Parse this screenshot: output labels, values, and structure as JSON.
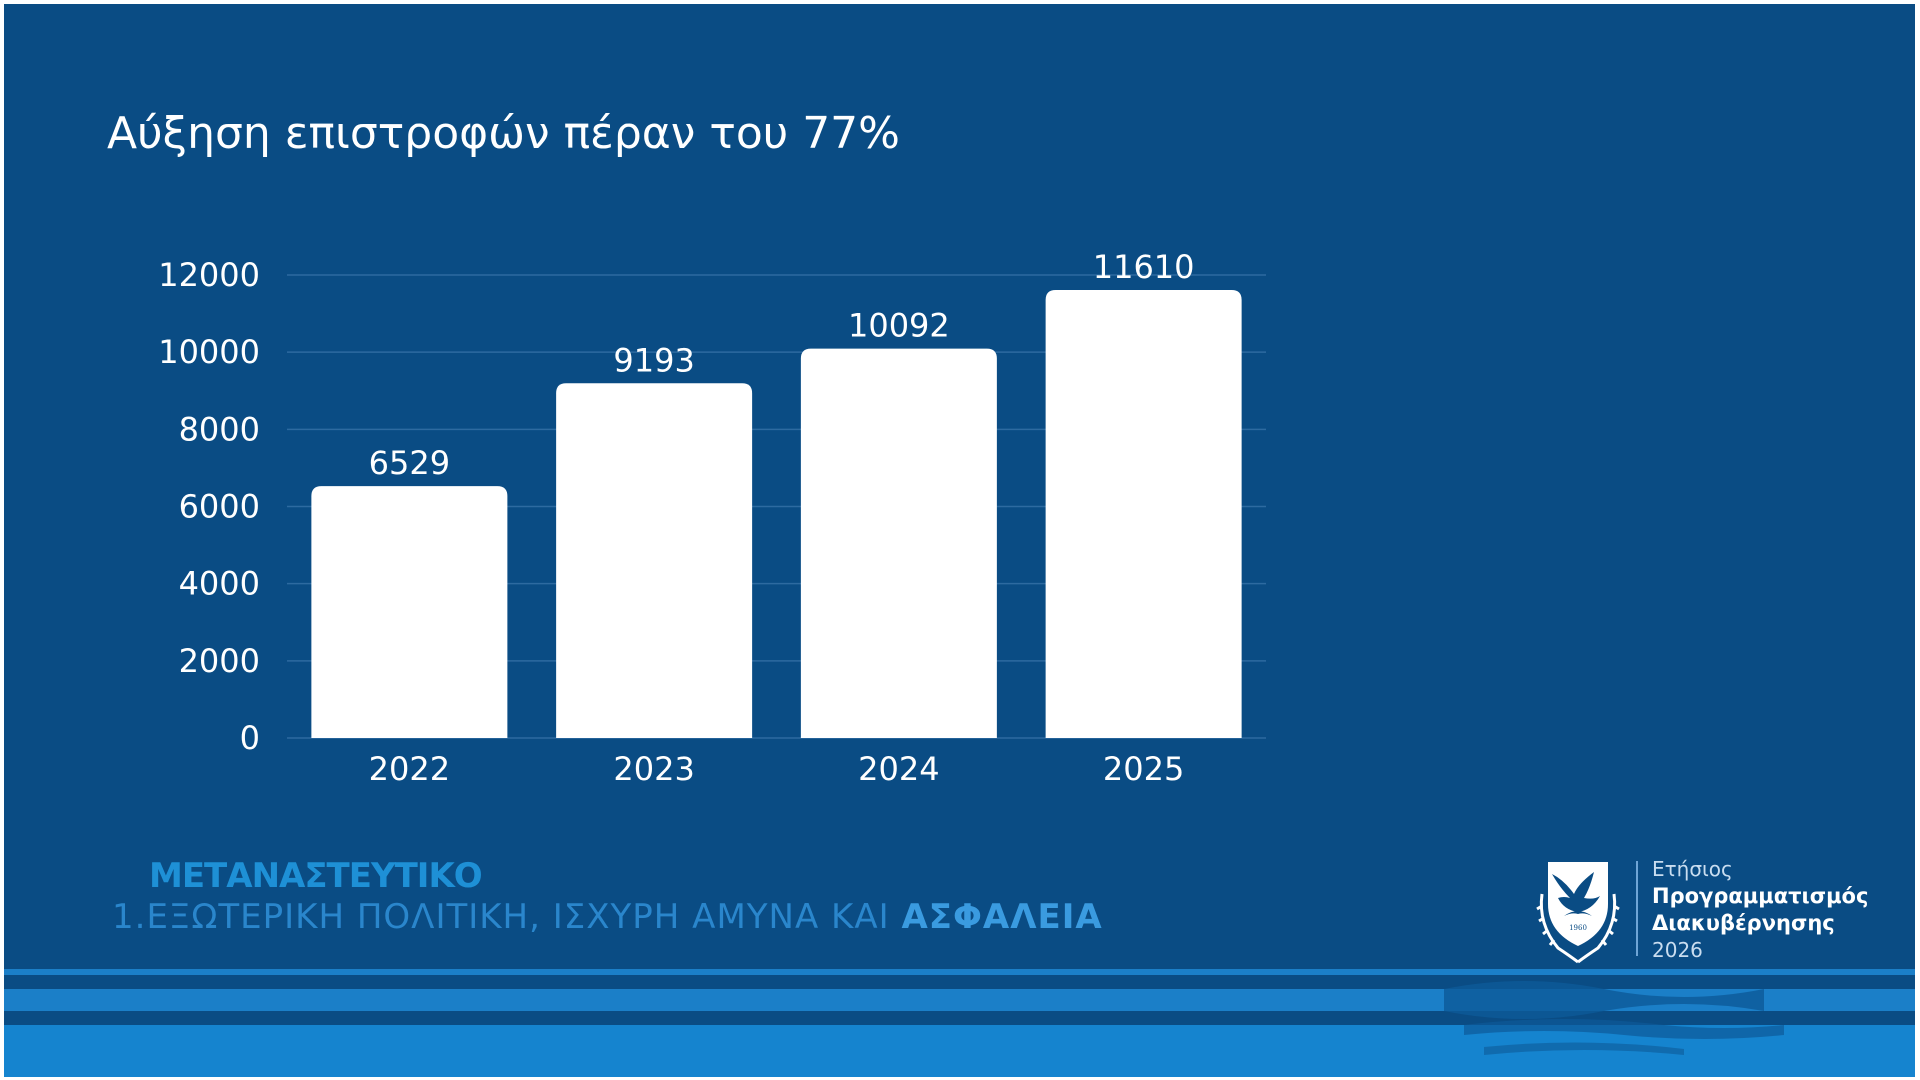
{
  "slide": {
    "title": "Αύξηση επιστροφών πέραν του 77%",
    "footer": {
      "category": "ΜΕΤΑΝΑΣΤΕΥΤΙΚΟ",
      "pillar_number": "1.",
      "pillar_text": "ΕΞΩΤΕΡΙΚΗ ΠΟΛΙΤΙΚΗ, ΙΣΧΥΡΗ ΑΜΥΝΑ ΚΑΙ ",
      "pillar_strong": "ΑΣΦΑΛΕΙΑ"
    },
    "program": {
      "line1": "Ετήσιος",
      "line2": "Προγραμματισμός",
      "line3": "Διακυβέρνησης",
      "line4": "2026"
    },
    "logo_icon": "cyprus-coat-of-arms-icon",
    "logo_year_text": "1960"
  },
  "colors": {
    "background": "#0a4c84",
    "bar": "#ffffff",
    "text": "#ffffff",
    "gridline": "#2d6aa0",
    "accent": "#1e90d6"
  },
  "chart_data": {
    "type": "bar",
    "categories": [
      "2022",
      "2023",
      "2024",
      "2025"
    ],
    "values": [
      6529,
      9193,
      10092,
      11610
    ],
    "data_labels": [
      "6529",
      "9193",
      "10092",
      "11610"
    ],
    "title": "Αύξηση επιστροφών πέραν του 77%",
    "xlabel": "",
    "ylabel": "",
    "ylim": [
      0,
      12000
    ],
    "yticks": [
      0,
      2000,
      4000,
      6000,
      8000,
      10000,
      12000
    ],
    "ytick_labels": [
      "0",
      "2000",
      "4000",
      "6000",
      "8000",
      "10000",
      "12000"
    ],
    "grid": true,
    "legend": "none"
  }
}
